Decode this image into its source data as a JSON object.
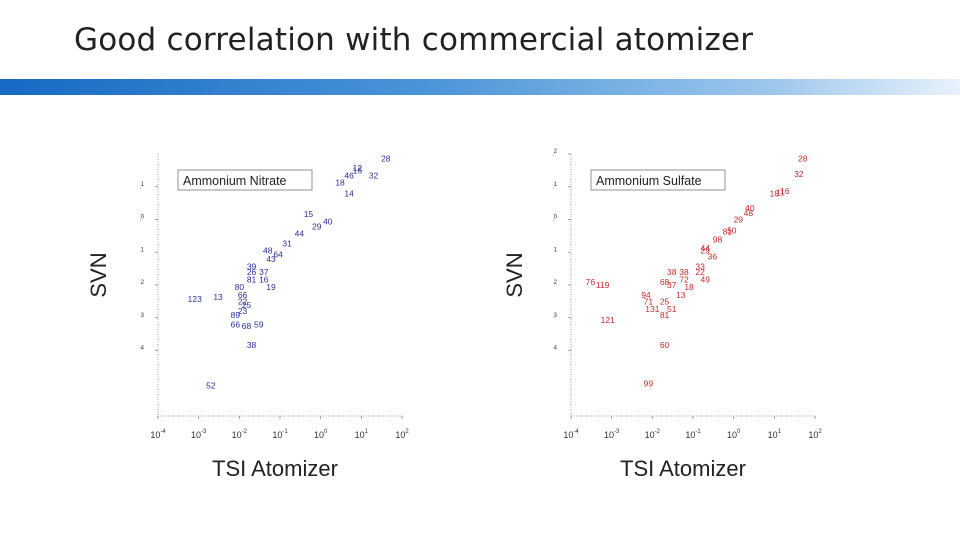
{
  "slide": {
    "title": "Good correlation with commercial atomizer"
  },
  "colors": {
    "accent_bar_start": "#1769c4",
    "accent_bar_end": "#e8f2fb",
    "nitrate_points": "#2b2f9a",
    "sulfate_points": "#c62b2b"
  },
  "chart_data": [
    {
      "type": "scatter",
      "title": "Ammonium Nitrate",
      "xlabel": "TSI Atomizer",
      "ylabel": "SVN",
      "xscale": "log",
      "yscale": "log",
      "xlim": [
        0.0001,
        100
      ],
      "ylim": [
        1e-06,
        100
      ],
      "x_ticks": [
        "10^-4",
        "10^-3",
        "10^-2",
        "10^-1",
        "10^0",
        "10^1",
        "10^2"
      ],
      "y_ticks": [
        "10^-4",
        "10^-3",
        "10^-2",
        "10^-1",
        "10^0",
        "10^1"
      ],
      "color": "#2b2f9a",
      "points": [
        {
          "label": "28",
          "x": 40,
          "y": 60
        },
        {
          "label": "12",
          "x": 8,
          "y": 30
        },
        {
          "label": "16",
          "x": 8,
          "y": 25
        },
        {
          "label": "46",
          "x": 5,
          "y": 18
        },
        {
          "label": "18",
          "x": 3,
          "y": 11
        },
        {
          "label": "32",
          "x": 20,
          "y": 18
        },
        {
          "label": "14",
          "x": 5,
          "y": 5
        },
        {
          "label": "15",
          "x": 0.5,
          "y": 1.2
        },
        {
          "label": "40",
          "x": 1.5,
          "y": 0.7
        },
        {
          "label": "29",
          "x": 0.8,
          "y": 0.5
        },
        {
          "label": "44",
          "x": 0.3,
          "y": 0.3
        },
        {
          "label": "31",
          "x": 0.15,
          "y": 0.15
        },
        {
          "label": "48",
          "x": 0.05,
          "y": 0.09
        },
        {
          "label": "64",
          "x": 0.09,
          "y": 0.07
        },
        {
          "label": "43",
          "x": 0.06,
          "y": 0.05
        },
        {
          "label": "39",
          "x": 0.02,
          "y": 0.03
        },
        {
          "label": "26",
          "x": 0.02,
          "y": 0.02
        },
        {
          "label": "37",
          "x": 0.04,
          "y": 0.02
        },
        {
          "label": "81",
          "x": 0.02,
          "y": 0.012
        },
        {
          "label": "16",
          "x": 0.04,
          "y": 0.012
        },
        {
          "label": "19",
          "x": 0.06,
          "y": 0.007
        },
        {
          "label": "80",
          "x": 0.01,
          "y": 0.007
        },
        {
          "label": "66",
          "x": 0.012,
          "y": 0.004
        },
        {
          "label": "123",
          "x": 0.0008,
          "y": 0.003
        },
        {
          "label": "13",
          "x": 0.003,
          "y": 0.0035
        },
        {
          "label": "22",
          "x": 0.012,
          "y": 0.0025
        },
        {
          "label": "25",
          "x": 0.015,
          "y": 0.002
        },
        {
          "label": "23",
          "x": 0.012,
          "y": 0.0013
        },
        {
          "label": "89",
          "x": 0.008,
          "y": 0.001
        },
        {
          "label": "66",
          "x": 0.008,
          "y": 0.0005
        },
        {
          "label": "68",
          "x": 0.015,
          "y": 0.00045
        },
        {
          "label": "59",
          "x": 0.03,
          "y": 0.0005
        },
        {
          "label": "38",
          "x": 0.02,
          "y": 0.00012
        },
        {
          "label": "52",
          "x": 0.002,
          "y": 7e-06
        }
      ]
    },
    {
      "type": "scatter",
      "title": "Ammonium Sulfate",
      "xlabel": "TSI Atomizer",
      "ylabel": "SVN",
      "xscale": "log",
      "yscale": "log",
      "xlim": [
        0.0001,
        100
      ],
      "ylim": [
        1e-06,
        100
      ],
      "x_ticks": [
        "10^-4",
        "10^-3",
        "10^-2",
        "10^-1",
        "10^0",
        "10^1",
        "10^2"
      ],
      "y_ticks": [
        "10^-4",
        "10^-3",
        "10^-2",
        "10^-1",
        "10^0",
        "10^1",
        "10^2"
      ],
      "color": "#c62b2b",
      "points": [
        {
          "label": "28",
          "x": 50,
          "y": 60
        },
        {
          "label": "32",
          "x": 40,
          "y": 20
        },
        {
          "label": "18",
          "x": 10,
          "y": 5
        },
        {
          "label": "11",
          "x": 14,
          "y": 5.5
        },
        {
          "label": "16",
          "x": 18,
          "y": 6
        },
        {
          "label": "40",
          "x": 2.5,
          "y": 1.8
        },
        {
          "label": "48",
          "x": 2.3,
          "y": 1.3
        },
        {
          "label": "29",
          "x": 1.3,
          "y": 0.8
        },
        {
          "label": "81",
          "x": 0.7,
          "y": 0.35
        },
        {
          "label": "50",
          "x": 0.9,
          "y": 0.38
        },
        {
          "label": "98",
          "x": 0.4,
          "y": 0.2
        },
        {
          "label": "44",
          "x": 0.2,
          "y": 0.11
        },
        {
          "label": "29",
          "x": 0.2,
          "y": 0.09
        },
        {
          "label": "36",
          "x": 0.3,
          "y": 0.06
        },
        {
          "label": "33",
          "x": 0.15,
          "y": 0.03
        },
        {
          "label": "38",
          "x": 0.03,
          "y": 0.02
        },
        {
          "label": "38",
          "x": 0.06,
          "y": 0.02
        },
        {
          "label": "22",
          "x": 0.15,
          "y": 0.02
        },
        {
          "label": "72",
          "x": 0.06,
          "y": 0.012
        },
        {
          "label": "49",
          "x": 0.2,
          "y": 0.012
        },
        {
          "label": "68",
          "x": 0.02,
          "y": 0.01
        },
        {
          "label": "37",
          "x": 0.03,
          "y": 0.008
        },
        {
          "label": "18",
          "x": 0.08,
          "y": 0.007
        },
        {
          "label": "76",
          "x": 0.0003,
          "y": 0.01
        },
        {
          "label": "119",
          "x": 0.0006,
          "y": 0.008
        },
        {
          "label": "94",
          "x": 0.007,
          "y": 0.004
        },
        {
          "label": "13",
          "x": 0.05,
          "y": 0.004
        },
        {
          "label": "71",
          "x": 0.008,
          "y": 0.0025
        },
        {
          "label": "25",
          "x": 0.02,
          "y": 0.0025
        },
        {
          "label": "131",
          "x": 0.01,
          "y": 0.0015
        },
        {
          "label": "51",
          "x": 0.03,
          "y": 0.0015
        },
        {
          "label": "81",
          "x": 0.02,
          "y": 0.001
        },
        {
          "label": "121",
          "x": 0.0008,
          "y": 0.0007
        },
        {
          "label": "60",
          "x": 0.02,
          "y": 0.00012
        },
        {
          "label": "99",
          "x": 0.008,
          "y": 8e-06
        }
      ]
    }
  ]
}
